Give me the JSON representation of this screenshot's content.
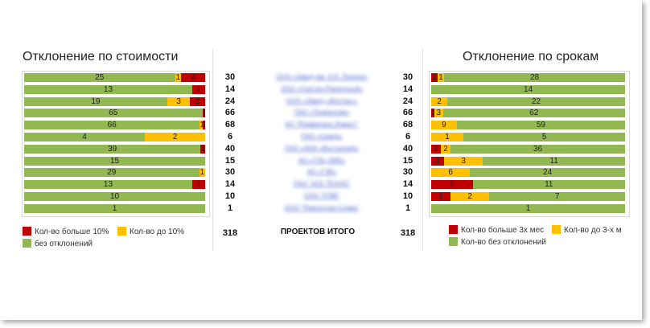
{
  "chart_data": [
    {
      "type": "bar",
      "orientation": "horizontal",
      "stacked": true,
      "title": "Отклонение по стоимости",
      "series": [
        {
          "name": "без отклонений",
          "color": "#92b852",
          "values": [
            25,
            13,
            19,
            65,
            66,
            4,
            39,
            15,
            29,
            13,
            10,
            1
          ]
        },
        {
          "name": "Кол-во до 10%",
          "color": "#ffc000",
          "values": [
            1,
            0,
            3,
            0,
            1,
            2,
            0,
            0,
            1,
            0,
            0,
            0
          ]
        },
        {
          "name": "Кол-во больше 10%",
          "color": "#c00000",
          "values": [
            4,
            1,
            2,
            1,
            1,
            0,
            1,
            0,
            0,
            1,
            0,
            0
          ]
        }
      ],
      "legend_position": "bottom"
    },
    {
      "type": "bar",
      "orientation": "horizontal",
      "stacked": true,
      "title": "Отклонение по срокам",
      "series": [
        {
          "name": "Кол-во больше 3х мес",
          "color": "#c00000",
          "values": [
            1,
            0,
            0,
            1,
            0,
            0,
            2,
            1,
            0,
            3,
            1,
            0
          ]
        },
        {
          "name": "Кол-во до 3-х м",
          "color": "#ffc000",
          "values": [
            1,
            0,
            2,
            3,
            9,
            1,
            2,
            3,
            6,
            0,
            2,
            0
          ]
        },
        {
          "name": "Кол-во без отклонений",
          "color": "#92b852",
          "values": [
            28,
            14,
            22,
            62,
            59,
            5,
            36,
            11,
            24,
            11,
            7,
            1
          ]
        }
      ],
      "legend_position": "bottom"
    }
  ],
  "counts_left": [
    "30",
    "14",
    "24",
    "66",
    "68",
    "6",
    "40",
    "15",
    "30",
    "14",
    "10",
    "1"
  ],
  "counts_right": [
    "30",
    "14",
    "24",
    "66",
    "68",
    "6",
    "40",
    "15",
    "30",
    "14",
    "10",
    "1"
  ],
  "total_left": "318",
  "total_right": "318",
  "total_label": "ПРОЕКТОВ ИТОГО",
  "projects": [
    "ООО «Завод им. Л.И. Ленина»",
    "ООО «Газстан Ремонтный»",
    "ООО «Завод «Восток»»",
    "ПАО «Техмонтаж»",
    "АО \"Ремфинанс Инвест\"",
    "ПАО «Север»",
    "ПАО «АКМ «Востокнеф»",
    "АО «ТЭЦ ХМБ»",
    "АО «ГЭК»",
    "ПАО \"АСК ТЕХНО\"",
    "ООО \"РЭМ\"",
    "ООО \"Ремонтная Слава\""
  ]
}
